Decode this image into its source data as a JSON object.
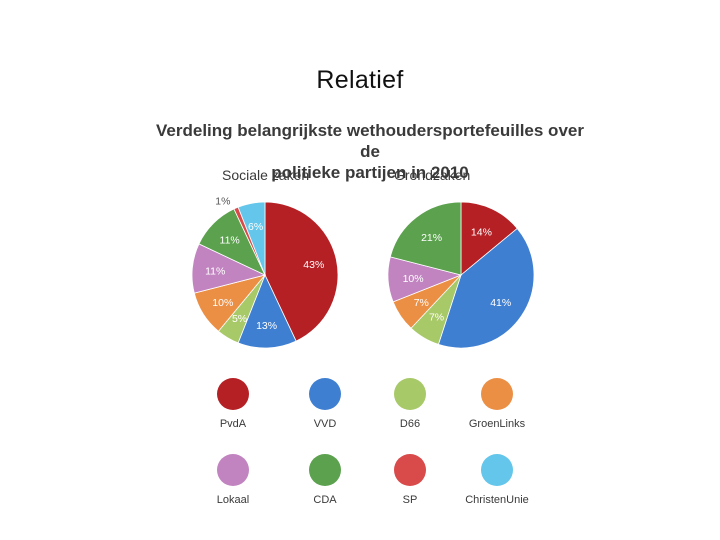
{
  "slide": {
    "title": "Relatief"
  },
  "chart_data": {
    "type": "pie",
    "title": "Verdeling belangrijkste wethoudersportefeuilles over de politieke partijen in 2010",
    "title_line1": "Verdeling belangrijkste wethoudersportefeuilles over de",
    "title_line2": "politieke partijen in 2010",
    "parties": [
      {
        "name": "PvdA",
        "color": "#b52025"
      },
      {
        "name": "VVD",
        "color": "#3f7fd1"
      },
      {
        "name": "D66",
        "color": "#a8c968"
      },
      {
        "name": "GroenLinks",
        "color": "#eb8f45"
      },
      {
        "name": "Lokaal",
        "color": "#c184c0"
      },
      {
        "name": "CDA",
        "color": "#5ba14e"
      },
      {
        "name": "SP",
        "color": "#d94a4a"
      },
      {
        "name": "ChristenUnie",
        "color": "#63c6ea"
      }
    ],
    "pies": [
      {
        "title": "Sociale zaken",
        "slices": [
          {
            "party": "PvdA",
            "value": 43,
            "label": "43%"
          },
          {
            "party": "VVD",
            "value": 13,
            "label": "13%"
          },
          {
            "party": "D66",
            "value": 5,
            "label": "5%"
          },
          {
            "party": "GroenLinks",
            "value": 10,
            "label": "10%"
          },
          {
            "party": "Lokaal",
            "value": 11,
            "label": "11%"
          },
          {
            "party": "CDA",
            "value": 11,
            "label": "11%"
          },
          {
            "party": "SP",
            "value": 1,
            "label": "1%"
          },
          {
            "party": "ChristenUnie",
            "value": 6,
            "label": "6%"
          }
        ]
      },
      {
        "title": "Grondzaken",
        "slices": [
          {
            "party": "PvdA",
            "value": 14,
            "label": "14%"
          },
          {
            "party": "VVD",
            "value": 41,
            "label": "41%"
          },
          {
            "party": "D66",
            "value": 7,
            "label": "7%"
          },
          {
            "party": "GroenLinks",
            "value": 7,
            "label": "7%"
          },
          {
            "party": "Lokaal",
            "value": 10,
            "label": "10%"
          },
          {
            "party": "CDA",
            "value": 21,
            "label": "21%"
          }
        ]
      }
    ]
  }
}
